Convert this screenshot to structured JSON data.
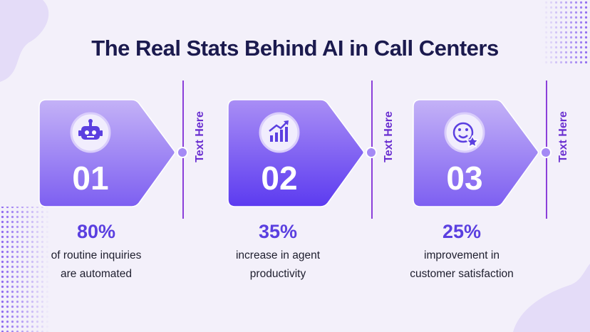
{
  "header": {
    "title": "The Real Stats Behind AI in Call Centers"
  },
  "cards": [
    {
      "number": "01",
      "side_label": "Text Here",
      "stat": "80%",
      "description": [
        "of routine inquiries",
        "are automated"
      ]
    },
    {
      "number": "02",
      "side_label": "Text Here",
      "stat": "35%",
      "description": [
        "increase in agent",
        "productivity"
      ]
    },
    {
      "number": "03",
      "side_label": "Text Here",
      "stat": "25%",
      "description": [
        "improvement in",
        "customer satisfaction"
      ]
    }
  ]
}
